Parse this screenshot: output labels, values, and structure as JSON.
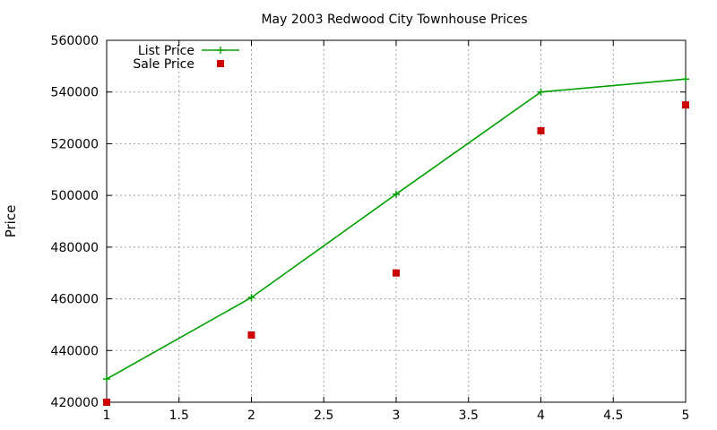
{
  "chart_data": {
    "type": "line",
    "title": "May 2003 Redwood City Townhouse Prices",
    "xlabel": "",
    "ylabel": "Price",
    "xlim": [
      1,
      5
    ],
    "ylim": [
      420000,
      560000
    ],
    "xticks": [
      "1",
      "1.5",
      "2",
      "2.5",
      "3",
      "3.5",
      "4",
      "4.5",
      "5"
    ],
    "yticks": [
      "420000",
      "440000",
      "460000",
      "480000",
      "500000",
      "520000",
      "540000",
      "560000"
    ],
    "grid": true,
    "legend_position": "top-left",
    "series": [
      {
        "name": "List Price",
        "style": "lines-points",
        "color": "#00a000",
        "marker": "plus",
        "x": [
          1,
          2,
          3,
          4,
          5
        ],
        "y": [
          429000,
          460500,
          500500,
          540000,
          545000
        ]
      },
      {
        "name": "Sale Price",
        "style": "points",
        "color": "#cc0000",
        "marker": "square",
        "x": [
          1,
          2,
          3,
          4,
          5
        ],
        "y": [
          420000,
          446000,
          470000,
          525000,
          535000
        ]
      }
    ]
  }
}
